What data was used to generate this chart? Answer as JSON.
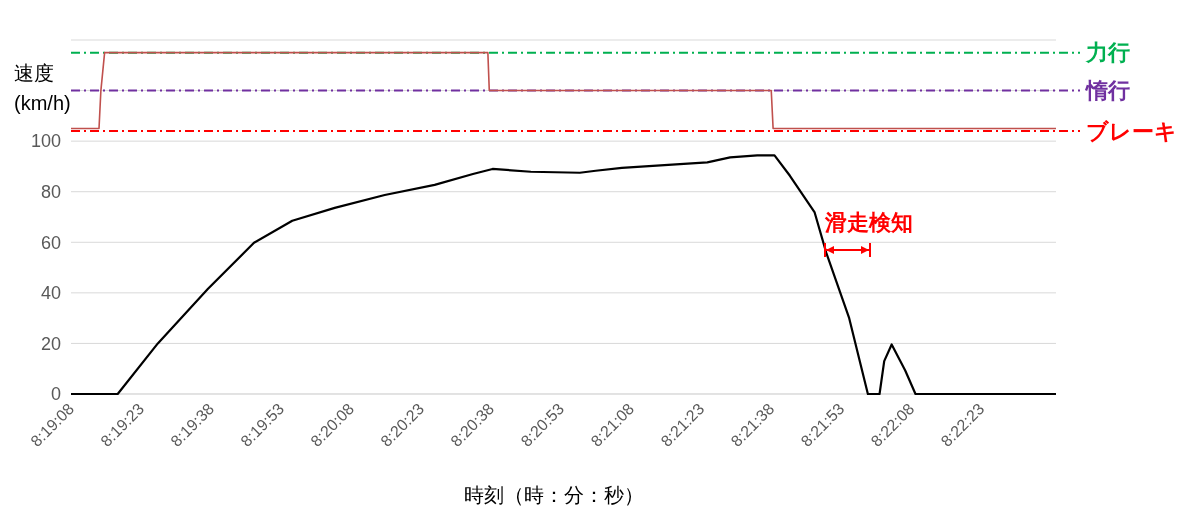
{
  "chart_data": {
    "type": "line",
    "xlabel": "時刻（時：分：秒）",
    "ylabel": "速度 (km/h)",
    "xlim": [
      8.318889,
      8.3775
    ],
    "xticks": [
      {
        "value": 8.318889,
        "label": "8:19:08"
      },
      {
        "value": 8.323056,
        "label": "8:19:23"
      },
      {
        "value": 8.327222,
        "label": "8:19:38"
      },
      {
        "value": 8.331389,
        "label": "8:19:53"
      },
      {
        "value": 8.335556,
        "label": "8:20:08"
      },
      {
        "value": 8.339722,
        "label": "8:20:23"
      },
      {
        "value": 8.343889,
        "label": "8:20:38"
      },
      {
        "value": 8.348056,
        "label": "8:20:53"
      },
      {
        "value": 8.352222,
        "label": "8:21:08"
      },
      {
        "value": 8.356389,
        "label": "8:21:23"
      },
      {
        "value": 8.360556,
        "label": "8:21:38"
      },
      {
        "value": 8.364722,
        "label": "8:21:53"
      },
      {
        "value": 8.368889,
        "label": "8:22:08"
      },
      {
        "value": 8.373056,
        "label": "8:22:23"
      }
    ],
    "ylim": [
      0,
      140
    ],
    "yticks": [
      0,
      20,
      40,
      60,
      80,
      100,
      {
        "value": 120,
        "label": null
      },
      {
        "value": 140,
        "label": null
      }
    ],
    "grid": "y",
    "marker": "none",
    "line_style": "solid",
    "series": [
      {
        "color": "#000000",
        "x": [
          8.318889,
          8.321667,
          8.324056,
          8.327028,
          8.329778,
          8.332056,
          8.334583,
          8.337556,
          8.340528,
          8.342806,
          8.343972,
          8.34625,
          8.349167,
          8.350111,
          8.351667,
          8.354889,
          8.35675,
          8.358111,
          8.359722,
          8.36075,
          8.361667,
          8.363139,
          8.363833,
          8.365194,
          8.366306,
          8.367,
          8.367278,
          8.367722,
          8.368528,
          8.369139,
          8.3775
        ],
        "values": [
          0,
          0,
          20,
          41.5,
          59.8,
          68.5,
          73.6,
          78.7,
          82.7,
          87,
          89,
          87.9,
          87.5,
          88.3,
          89.4,
          90.8,
          91.6,
          93.6,
          94.4,
          94.4,
          86.3,
          71.8,
          55.8,
          30,
          0,
          0,
          13,
          19.6,
          9.3,
          0,
          0
        ]
      },
      {
        "color": "#c0504d",
        "x": [
          8.318889,
          8.320556,
          8.320667,
          8.320889,
          8.343694,
          8.343778,
          8.360556,
          8.360667,
          8.3775
        ],
        "values": [
          105,
          105,
          120,
          135,
          135,
          120,
          120,
          105,
          105
        ]
      }
    ],
    "ref_lines": [
      {
        "axis": "y",
        "value": 135,
        "label": "力行",
        "color": "#00b050",
        "line_style": "dashed"
      },
      {
        "axis": "y",
        "value": 120,
        "label": "惰行",
        "color": "#7030a0",
        "line_style": "dashed"
      },
      {
        "axis": "y",
        "value": 104,
        "label": "ブレーキ",
        "color": "#ff0000",
        "line_style": "dashed"
      }
    ],
    "annotations": [
      "滑走検知"
    ]
  }
}
